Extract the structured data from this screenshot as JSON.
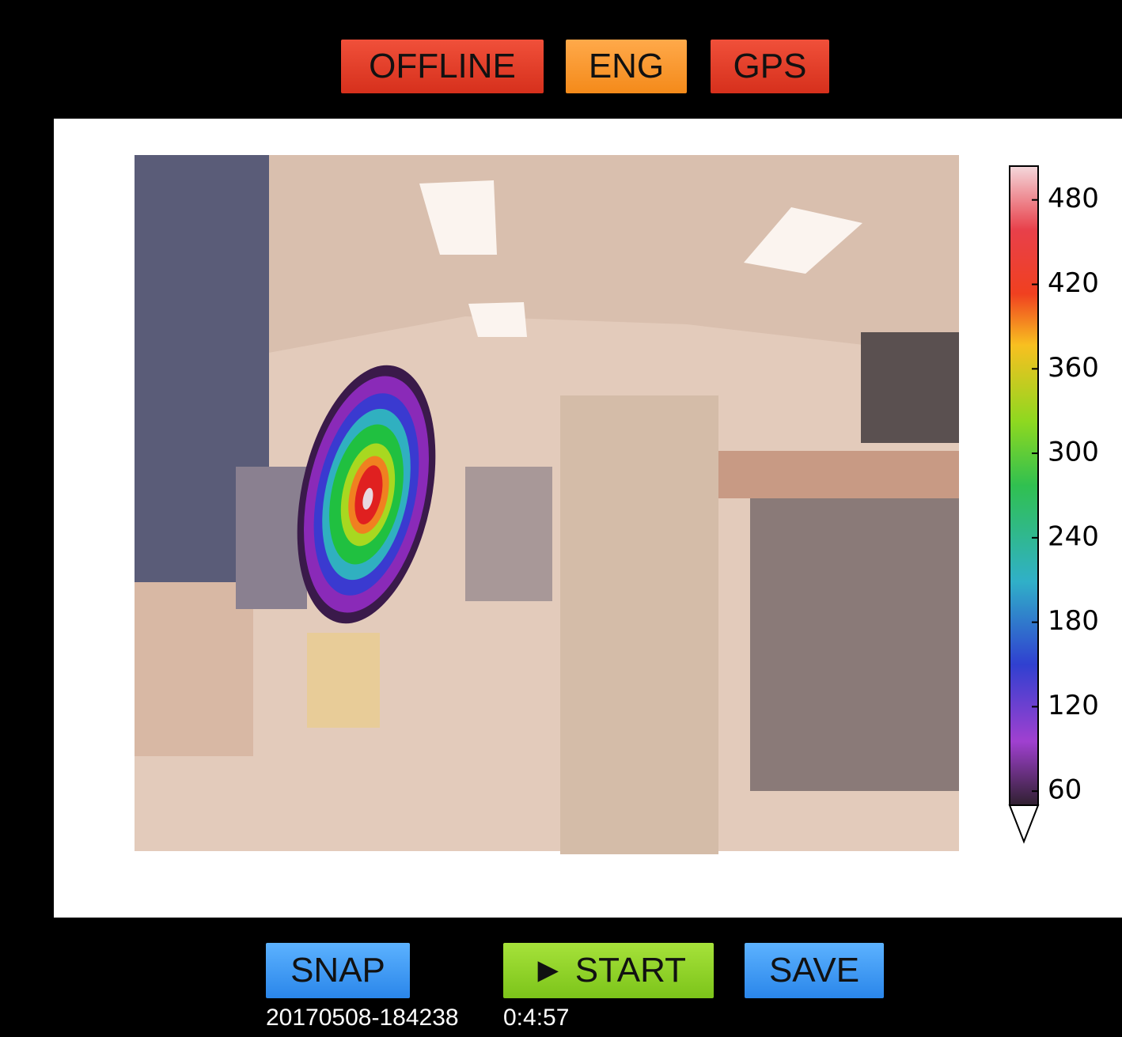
{
  "header": {
    "buttons": [
      "OFFLINE",
      "ENG",
      "GPS"
    ]
  },
  "colorbar": {
    "range": [
      50,
      504
    ],
    "ticks": [
      60,
      120,
      180,
      240,
      300,
      360,
      420,
      480
    ]
  },
  "footer": {
    "buttons": [
      "SNAP",
      "► START",
      "SAVE"
    ],
    "timestamp": "20170508-184238",
    "elapsed": "0:4:57"
  }
}
